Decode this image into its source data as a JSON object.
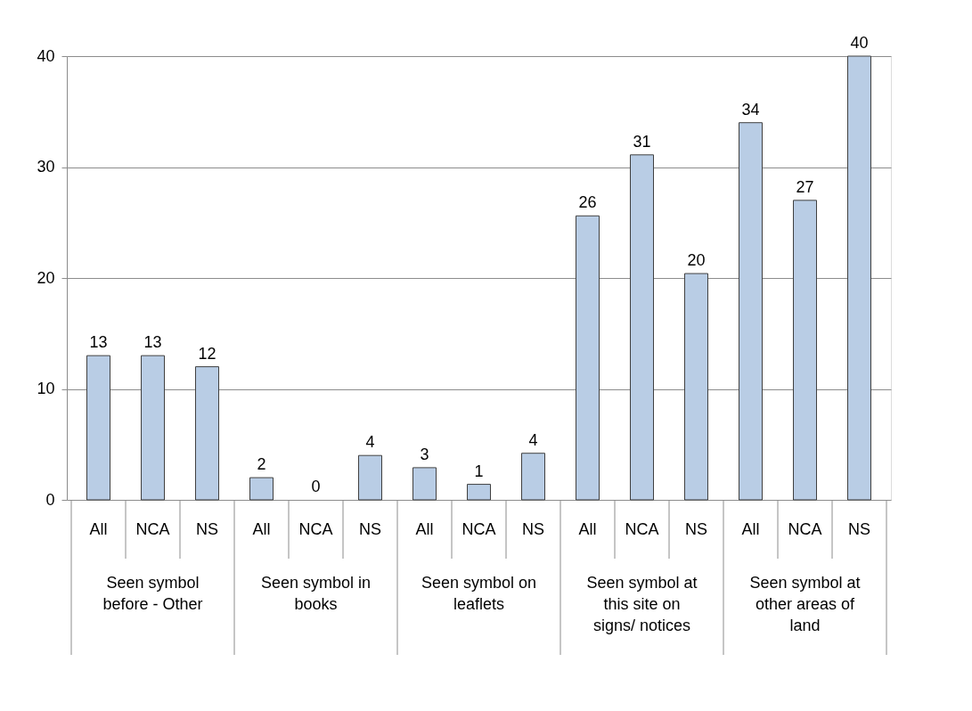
{
  "chart_data": {
    "type": "bar",
    "categories": [
      "All",
      "NCA",
      "NS",
      "All",
      "NCA",
      "NS",
      "All",
      "NCA",
      "NS",
      "All",
      "NCA",
      "NS",
      "All",
      "NCA",
      "NS"
    ],
    "values": [
      13,
      13,
      12,
      2,
      0,
      4,
      2.9,
      1.4,
      4.2,
      25.6,
      31.1,
      20.4,
      34,
      27,
      40
    ],
    "value_labels": [
      "13",
      "13",
      "12",
      "2",
      "0",
      "4",
      "3",
      "1",
      "4",
      "26",
      "31",
      "20",
      "34",
      "27",
      "40"
    ],
    "color": "#b9cde5",
    "annotations": [
      "Seen symbol before - Other",
      "Seen symbol in books",
      "Seen symbol on leaflets",
      "Seen symbol at this site on signs/ notices",
      "Seen symbol at other areas of land"
    ],
    "ylim": [
      0,
      40
    ],
    "yticks": [
      0,
      10,
      20,
      30,
      40
    ],
    "grid": "y"
  }
}
